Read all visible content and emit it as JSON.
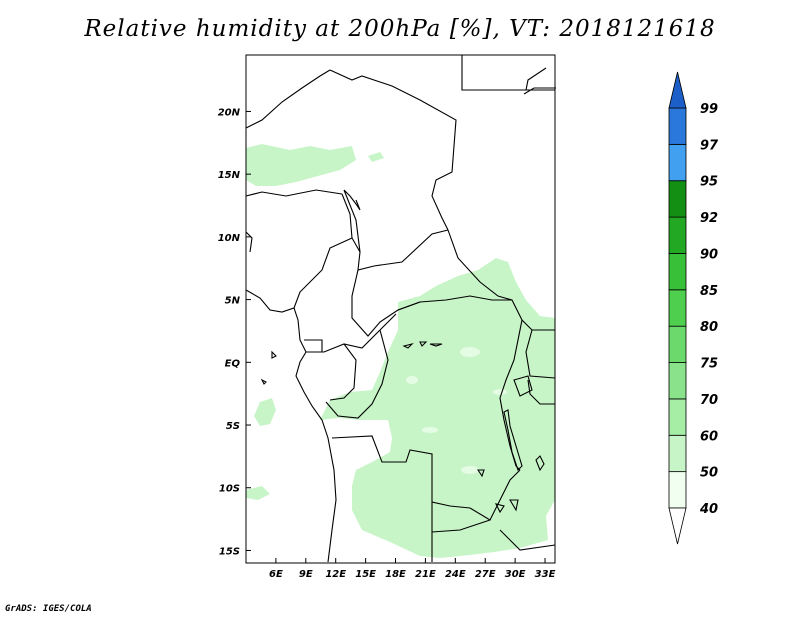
{
  "title": "Relative humidity at 200hPa [%], VT: 2018121618",
  "credit": "GrADS: IGES/COLA",
  "map": {
    "lon_range": [
      3,
      34
    ],
    "lat_range": [
      -16,
      24.5
    ],
    "lon_ticks": [
      "6E",
      "9E",
      "12E",
      "15E",
      "18E",
      "21E",
      "24E",
      "27E",
      "30E",
      "33E"
    ],
    "lat_ticks": [
      "20N",
      "15N",
      "10N",
      "5N",
      "EQ",
      "5S",
      "10S",
      "15S"
    ],
    "lon_values": [
      6,
      9,
      12,
      15,
      18,
      21,
      24,
      27,
      30,
      33
    ],
    "lat_values": [
      20,
      15,
      10,
      5,
      0,
      -5,
      -10,
      -15
    ]
  },
  "colorbar": {
    "levels": [
      "40",
      "50",
      "60",
      "70",
      "75",
      "80",
      "85",
      "90",
      "92",
      "95",
      "97",
      "99"
    ],
    "colors": [
      "#f0fff0",
      "#c8f5c8",
      "#a6eda6",
      "#8ae38a",
      "#6bd96b",
      "#4ecf4e",
      "#38c038",
      "#22a822",
      "#138f13",
      "#42a0f0",
      "#2a78dc",
      "#1c5fc8"
    ],
    "extend": "both"
  },
  "fill_color": "#c8f5c8"
}
